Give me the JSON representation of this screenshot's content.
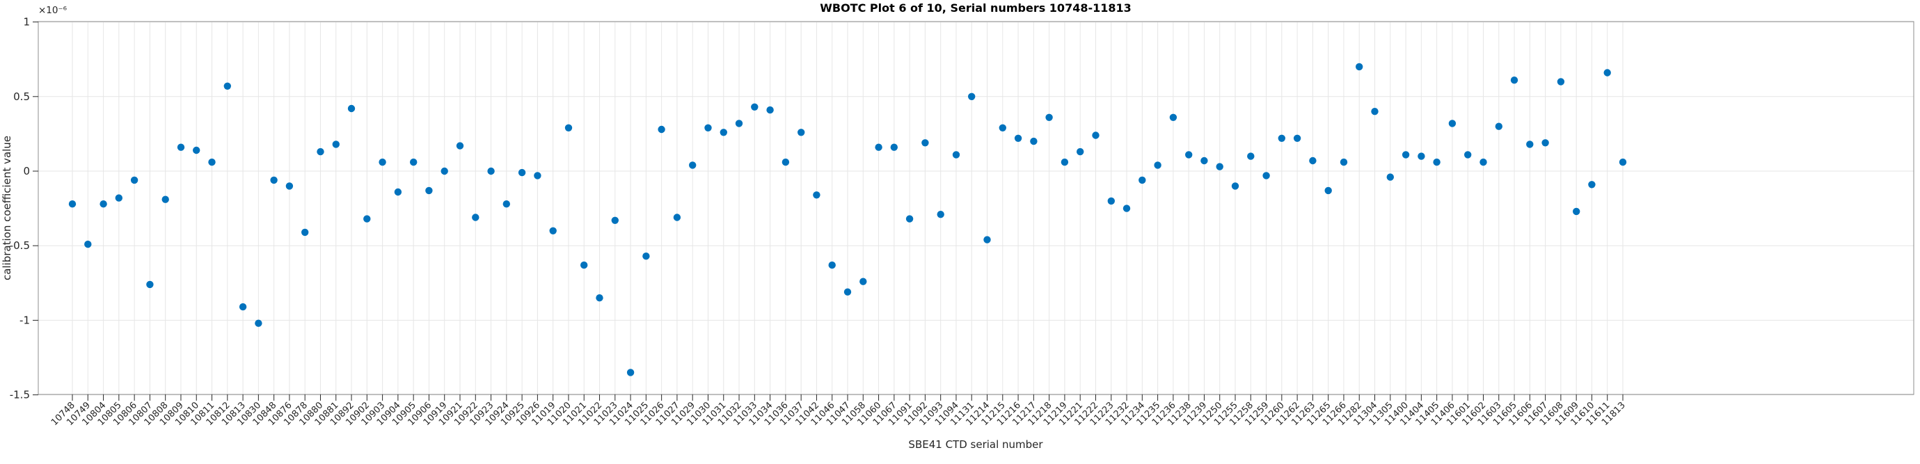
{
  "figure": {
    "title": "WBOTC Plot 6 of 10, Serial numbers 10748-11813",
    "xlabel": "SBE41 CTD serial number",
    "ylabel": "calibration coefficient value",
    "y_axis_exponent": "×10⁻⁶"
  },
  "chart_data": {
    "type": "scatter",
    "title": "WBOTC Plot 6 of 10, Serial numbers 10748-11813",
    "xlabel": "SBE41 CTD serial number",
    "ylabel": "calibration coefficient value",
    "y_exponent_label": "×10⁻⁶",
    "y_unit_multiplier": 1e-06,
    "ylim": [
      -1.5,
      1
    ],
    "y_ticks": [
      1,
      0.5,
      0,
      -0.5,
      -1,
      -1.5
    ],
    "y_tick_labels": [
      "1",
      "0.5",
      "0",
      "-0.5",
      "-1",
      "-1.5"
    ],
    "grid": true,
    "legend": "none",
    "marker": {
      "shape": "circle",
      "color": "#0072BD",
      "radius_px": 5.2
    },
    "colors": {
      "marker": "#0072BD",
      "grid": "#E6E6E6",
      "axis_frame": "#8C8C8C",
      "tick_marks": "#262626",
      "tick_labels": "#262626",
      "title": "#000000"
    },
    "x_tick_label_rotation_deg": 45,
    "categories": [
      "10748",
      "10749",
      "10804",
      "10805",
      "10806",
      "10807",
      "10808",
      "10809",
      "10810",
      "10811",
      "10812",
      "10813",
      "10830",
      "10848",
      "10876",
      "10878",
      "10880",
      "10881",
      "10892",
      "10902",
      "10903",
      "10904",
      "10905",
      "10906",
      "10919",
      "10921",
      "10922",
      "10923",
      "10924",
      "10925",
      "10926",
      "11019",
      "11020",
      "11021",
      "11022",
      "11023",
      "11024",
      "11025",
      "11026",
      "11027",
      "11029",
      "11030",
      "11031",
      "11032",
      "11033",
      "11034",
      "11036",
      "11037",
      "11042",
      "11046",
      "11047",
      "11058",
      "11060",
      "11067",
      "11091",
      "11092",
      "11093",
      "11094",
      "11131",
      "11214",
      "11215",
      "11216",
      "11217",
      "11218",
      "11219",
      "11221",
      "11222",
      "11223",
      "11232",
      "11234",
      "11235",
      "11236",
      "11238",
      "11239",
      "11250",
      "11255",
      "11258",
      "11259",
      "11260",
      "11262",
      "11263",
      "11265",
      "11266",
      "11282",
      "11304",
      "11305",
      "11400",
      "11404",
      "11405",
      "11406",
      "11601",
      "11602",
      "11603",
      "11605",
      "11606",
      "11607",
      "11608",
      "11609",
      "11610",
      "11611",
      "11813"
    ],
    "values": [
      -0.22,
      -0.49,
      -0.22,
      -0.18,
      -0.06,
      -0.76,
      -0.19,
      0.16,
      0.14,
      0.06,
      0.57,
      -0.91,
      -1.02,
      -0.06,
      -0.1,
      -0.41,
      0.13,
      0.18,
      0.42,
      -0.32,
      0.06,
      -0.14,
      0.06,
      -0.13,
      0.0,
      0.17,
      -0.31,
      0.0,
      -0.22,
      -0.01,
      -0.03,
      -0.4,
      0.29,
      -0.63,
      -0.85,
      -0.33,
      -1.35,
      -0.57,
      0.28,
      -0.31,
      0.04,
      0.29,
      0.26,
      0.32,
      0.43,
      0.41,
      0.06,
      0.26,
      -0.16,
      -0.63,
      -0.81,
      -0.74,
      0.16,
      0.16,
      -0.32,
      0.19,
      -0.29,
      0.11,
      0.5,
      -0.46,
      0.29,
      0.22,
      0.2,
      0.36,
      0.06,
      0.13,
      0.24,
      -0.2,
      -0.25,
      -0.06,
      0.04,
      0.36,
      0.11,
      0.07,
      0.03,
      -0.1,
      0.1,
      -0.03,
      0.22,
      0.22,
      0.07,
      -0.13,
      0.06,
      0.7,
      0.4,
      -0.04,
      0.11,
      0.1,
      0.06,
      0.32,
      0.11,
      0.06,
      0.3,
      0.61,
      0.18,
      0.19,
      0.6,
      -0.27,
      -0.09,
      0.66,
      0.06
    ]
  }
}
